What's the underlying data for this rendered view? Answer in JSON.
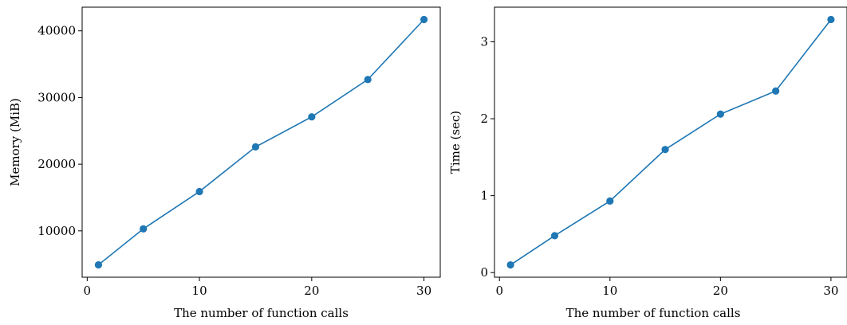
{
  "colors": {
    "series": "#1f77b4"
  },
  "chart_data": [
    {
      "type": "line",
      "x": [
        1,
        5,
        10,
        15,
        20,
        25,
        30
      ],
      "series": [
        {
          "values": [
            4900,
            10300,
            15900,
            22600,
            27100,
            32700,
            41700
          ]
        }
      ],
      "xlabel": "The number of function calls",
      "ylabel": "Memory (MiB)",
      "xlim": [
        -0.45,
        31.45
      ],
      "ylim": [
        3050,
        43550
      ],
      "xticks": [
        0,
        10,
        20,
        30
      ],
      "yticks": [
        10000,
        20000,
        30000,
        40000
      ],
      "markers": true,
      "grid": false
    },
    {
      "type": "line",
      "x": [
        1,
        5,
        10,
        15,
        20,
        25,
        30
      ],
      "series": [
        {
          "values": [
            0.1,
            0.48,
            0.93,
            1.6,
            2.06,
            2.36,
            3.29
          ]
        }
      ],
      "xlabel": "The number of function calls",
      "ylabel": "Time (sec)",
      "xlim": [
        -0.45,
        31.45
      ],
      "ylim": [
        -0.06,
        3.45
      ],
      "xticks": [
        0,
        10,
        20,
        30
      ],
      "yticks": [
        0,
        1,
        2,
        3
      ],
      "markers": true,
      "grid": false
    }
  ]
}
